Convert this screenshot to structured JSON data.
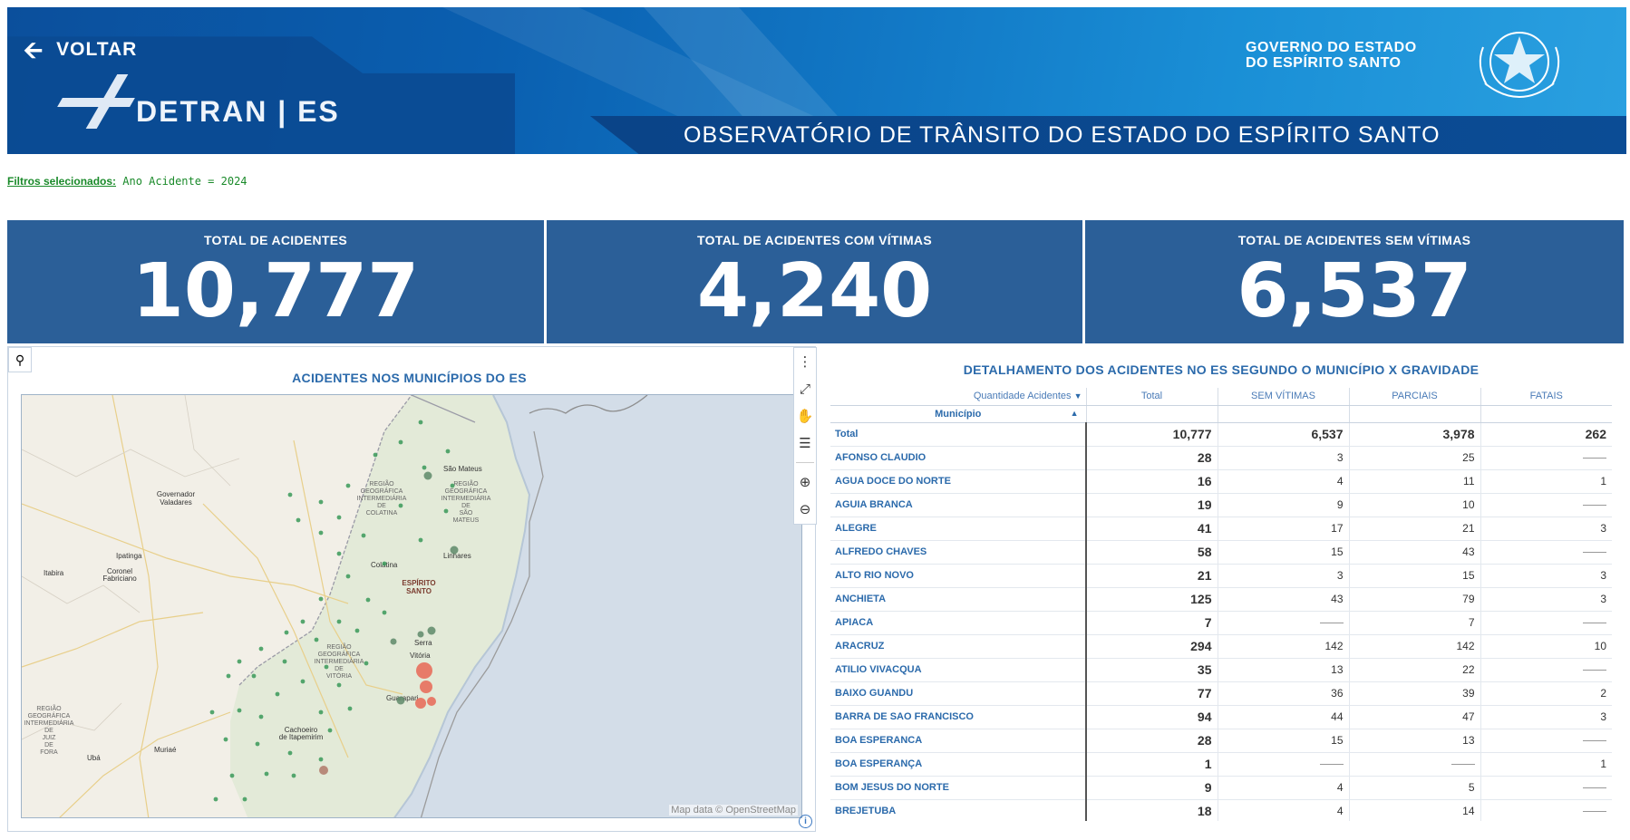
{
  "header": {
    "back_label": "VOLTAR",
    "logo_text": "DETRAN | ES",
    "gov_line1": "GOVERNO DO ESTADO",
    "gov_line2": "DO ESPÍRITO SANTO",
    "observatory_title": "OBSERVATÓRIO DE TRÂNSITO DO ESTADO DO ESPÍRITO SANTO"
  },
  "filters": {
    "label": "Filtros selecionados:",
    "value": "Ano Acidente = 2024"
  },
  "kpis": [
    {
      "title": "TOTAL DE ACIDENTES",
      "value": "10,777"
    },
    {
      "title": "TOTAL DE ACIDENTES COM VÍTIMAS",
      "value": "4,240"
    },
    {
      "title": "TOTAL DE ACIDENTES SEM VÍTIMAS",
      "value": "6,537"
    }
  ],
  "map": {
    "title": "ACIDENTES NOS MUNICÍPIOS DO ES",
    "credit": "Map data © OpenStreetMap",
    "labels": {
      "gov_valadares_1": "Governador",
      "gov_valadares_2": "Valadares",
      "ipatinga": "Ipatinga",
      "coronel_1": "Coronel",
      "coronel_2": "Fabriciano",
      "itabira": "Itabira",
      "sao_mateus": "São Mateus",
      "linhares": "Linhares",
      "colatina": "Colatina",
      "es_1": "ESPÍRITO",
      "es_2": "SANTO",
      "serra": "Serra",
      "vitoria": "Vitória",
      "guarapari": "Guarapari",
      "cachoeiro_1": "Cachoeiro",
      "cachoeiro_2": "de Itapemirim",
      "uba": "Ubá",
      "muriae": "Muriaé",
      "rg_colatina": [
        "REGIÃO",
        "GEOGRÁFICA",
        "INTERMEDIÁRIA",
        "DE",
        "COLATINA"
      ],
      "rg_saomateus": [
        "REGIÃO",
        "GEOGRÁFICA",
        "INTERMEDIÁRIA",
        "DE",
        "SÃO",
        "MATEUS"
      ],
      "rg_vitoria": [
        "REGIÃO",
        "GEOGRÁFICA",
        "INTERMEDIÁRIA",
        "DE",
        "VITÓRIA"
      ],
      "rg_juiz": [
        "REGIÃO",
        "GEOGRÁFICA",
        "INTERMEDIÁRIA",
        "DE",
        "JUIZ",
        "DE",
        "FORA"
      ]
    },
    "tool_icons": [
      "more-vertical-icon",
      "expand-icon",
      "pan-hand-icon",
      "layers-icon",
      "zoom-in-icon",
      "zoom-out-icon"
    ]
  },
  "table": {
    "title": "DETALHAMENTO DOS ACIDENTES NO ES SEGUNDO O MUNICÍPIO X GRAVIDADE",
    "measure_label": "Quantidade Acidentes",
    "row_header": "Município",
    "columns": [
      "Total",
      "SEM VÍTIMAS",
      "PARCIAIS",
      "FATAIS"
    ],
    "total_row": {
      "name": "Total",
      "total": "10,777",
      "sem": "6,537",
      "parciais": "3,978",
      "fatais": "262"
    },
    "rows": [
      {
        "name": "AFONSO CLAUDIO",
        "total": "28",
        "sem": "3",
        "parciais": "25",
        "fatais": ""
      },
      {
        "name": "AGUA DOCE DO NORTE",
        "total": "16",
        "sem": "4",
        "parciais": "11",
        "fatais": "1"
      },
      {
        "name": "AGUIA BRANCA",
        "total": "19",
        "sem": "9",
        "parciais": "10",
        "fatais": ""
      },
      {
        "name": "ALEGRE",
        "total": "41",
        "sem": "17",
        "parciais": "21",
        "fatais": "3"
      },
      {
        "name": "ALFREDO CHAVES",
        "total": "58",
        "sem": "15",
        "parciais": "43",
        "fatais": ""
      },
      {
        "name": "ALTO RIO NOVO",
        "total": "21",
        "sem": "3",
        "parciais": "15",
        "fatais": "3"
      },
      {
        "name": "ANCHIETA",
        "total": "125",
        "sem": "43",
        "parciais": "79",
        "fatais": "3"
      },
      {
        "name": "APIACA",
        "total": "7",
        "sem": "",
        "parciais": "7",
        "fatais": ""
      },
      {
        "name": "ARACRUZ",
        "total": "294",
        "sem": "142",
        "parciais": "142",
        "fatais": "10"
      },
      {
        "name": "ATILIO VIVACQUA",
        "total": "35",
        "sem": "13",
        "parciais": "22",
        "fatais": ""
      },
      {
        "name": "BAIXO GUANDU",
        "total": "77",
        "sem": "36",
        "parciais": "39",
        "fatais": "2"
      },
      {
        "name": "BARRA DE SAO FRANCISCO",
        "total": "94",
        "sem": "44",
        "parciais": "47",
        "fatais": "3"
      },
      {
        "name": "BOA ESPERANCA",
        "total": "28",
        "sem": "15",
        "parciais": "13",
        "fatais": ""
      },
      {
        "name": "BOA ESPERANÇA",
        "total": "1",
        "sem": "",
        "parciais": "",
        "fatais": "1"
      },
      {
        "name": "BOM JESUS DO NORTE",
        "total": "9",
        "sem": "4",
        "parciais": "5",
        "fatais": ""
      },
      {
        "name": "BREJETUBA",
        "total": "18",
        "sem": "4",
        "parciais": "14",
        "fatais": ""
      }
    ]
  }
}
